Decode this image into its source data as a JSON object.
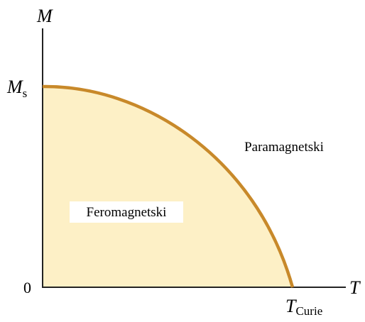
{
  "axes": {
    "y_label": "M",
    "x_label": "T",
    "origin": "0"
  },
  "saturation": {
    "symbol": "M",
    "subscript": "s"
  },
  "curie": {
    "symbol": "T",
    "subscript": "Curie"
  },
  "regions": {
    "ferro": "Feromagnetski",
    "para": "Paramagnetski"
  }
}
